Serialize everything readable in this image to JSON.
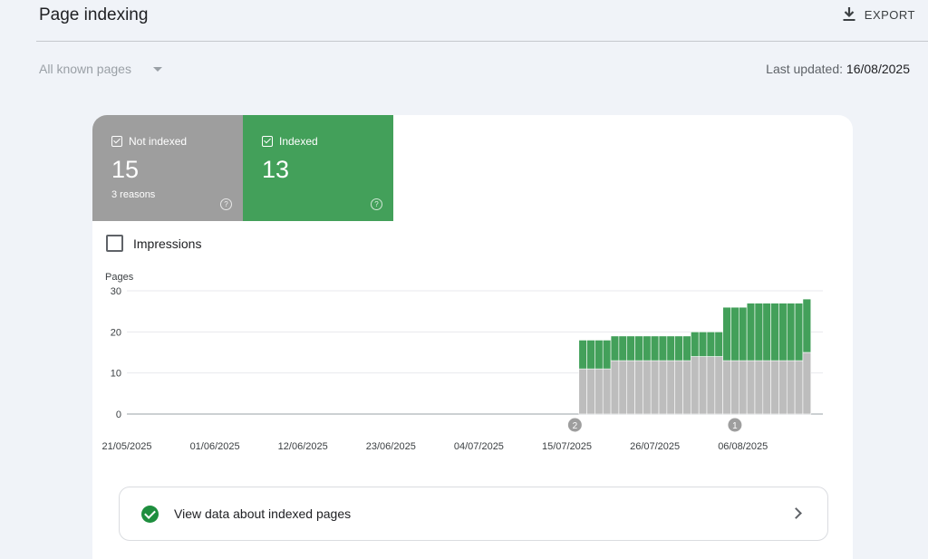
{
  "header": {
    "title": "Page indexing",
    "export_label": "EXPORT",
    "export_icon": "download-icon"
  },
  "filter": {
    "selected": "All known pages"
  },
  "last_updated": {
    "label": "Last updated:",
    "value": "16/08/2025"
  },
  "tiles": {
    "not_indexed": {
      "label": "Not indexed",
      "value": "15",
      "sub": "3 reasons",
      "help": "?",
      "color": "#9e9e9e"
    },
    "indexed": {
      "label": "Indexed",
      "value": "13",
      "help": "?",
      "color": "#43a05a"
    }
  },
  "impressions": {
    "label": "Impressions",
    "checked": false
  },
  "cta": {
    "label": "View data about indexed pages"
  },
  "chart_data": {
    "type": "bar",
    "stacked": true,
    "ylabel": "Pages",
    "ylim": [
      0,
      30
    ],
    "yticks": [
      0,
      10,
      20,
      30
    ],
    "x_range": [
      "21/05/2025",
      "16/08/2025"
    ],
    "xtick_labels": [
      "21/05/2025",
      "01/06/2025",
      "12/06/2025",
      "23/06/2025",
      "04/07/2025",
      "15/07/2025",
      "26/07/2025",
      "06/08/2025"
    ],
    "dates": [
      "17/07/2025",
      "18/07/2025",
      "19/07/2025",
      "20/07/2025",
      "21/07/2025",
      "22/07/2025",
      "23/07/2025",
      "24/07/2025",
      "25/07/2025",
      "26/07/2025",
      "27/07/2025",
      "28/07/2025",
      "29/07/2025",
      "30/07/2025",
      "31/07/2025",
      "01/08/2025",
      "02/08/2025",
      "03/08/2025",
      "04/08/2025",
      "05/08/2025",
      "06/08/2025",
      "07/08/2025",
      "08/08/2025",
      "09/08/2025",
      "10/08/2025",
      "11/08/2025",
      "12/08/2025",
      "13/08/2025",
      "14/08/2025"
    ],
    "series": [
      {
        "name": "Not indexed",
        "color": "#bdbdbd",
        "values": [
          11,
          11,
          11,
          11,
          13,
          13,
          13,
          13,
          13,
          13,
          13,
          13,
          13,
          13,
          14,
          14,
          14,
          14,
          13,
          13,
          13,
          13,
          13,
          13,
          13,
          13,
          13,
          13,
          15
        ]
      },
      {
        "name": "Indexed",
        "color": "#43a05a",
        "values": [
          7,
          7,
          7,
          7,
          6,
          6,
          6,
          6,
          6,
          6,
          6,
          6,
          6,
          6,
          6,
          6,
          6,
          6,
          13,
          13,
          13,
          14,
          14,
          14,
          14,
          14,
          14,
          14,
          13
        ]
      }
    ],
    "annotations": [
      {
        "date": "16/07/2025",
        "label": "2"
      },
      {
        "date": "05/08/2025",
        "label": "1"
      }
    ]
  }
}
